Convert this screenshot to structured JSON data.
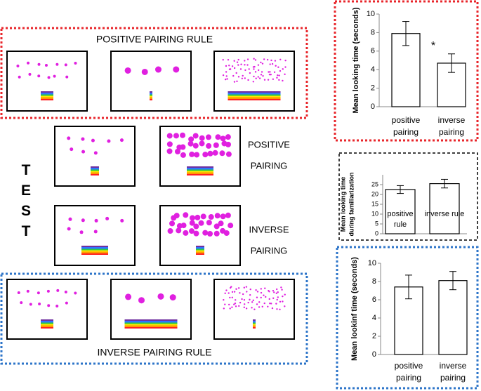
{
  "diagram": {
    "positive_rule": "POSITIVE PAIRING RULE",
    "inverse_rule": "INVERSE PAIRING RULE",
    "test": "TEST",
    "test_positive": [
      "POSITIVE",
      "PAIRING"
    ],
    "test_inverse": [
      "INVERSE",
      "PAIRING"
    ]
  },
  "chart_data": [
    {
      "type": "bar",
      "ylabel": [
        "Mean looking time (seconds)"
      ],
      "categories": [
        "positive pairing",
        "inverse pairing"
      ],
      "values": [
        7.9,
        4.7
      ],
      "errors": [
        1.3,
        1.0
      ],
      "color": "#ffffff",
      "ylim": [
        0,
        10
      ],
      "yticks": [
        0,
        2,
        4,
        6,
        8,
        10
      ],
      "annotation": "*"
    },
    {
      "type": "bar",
      "ylabel": [
        "Mean looking time",
        "during familiarization"
      ],
      "categories": [
        "positive rule",
        "inverse rule"
      ],
      "label_colors": [
        "#e8262b",
        "#2e75c9"
      ],
      "values": [
        22.5,
        25.5
      ],
      "errors": [
        2.0,
        2.2
      ],
      "color": "#ffffff",
      "ylim": [
        0,
        30
      ],
      "yticks": [
        0,
        5,
        10,
        15,
        20,
        25
      ]
    },
    {
      "type": "bar",
      "ylabel": [
        "Mean lookinf time (seconds)"
      ],
      "categories": [
        "positive pairing",
        "inverse pairing"
      ],
      "values": [
        7.4,
        8.1
      ],
      "errors": [
        1.3,
        1.0
      ],
      "color": "#ffffff",
      "ylim": [
        0,
        10
      ],
      "yticks": [
        0,
        2,
        4,
        6,
        8,
        10
      ]
    }
  ]
}
